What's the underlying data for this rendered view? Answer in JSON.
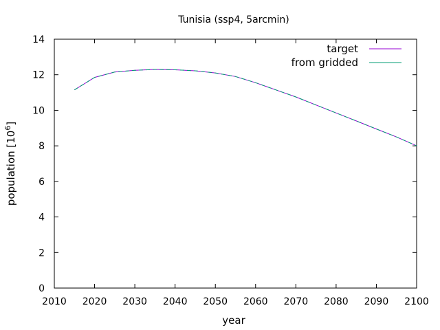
{
  "chart_data": {
    "type": "line",
    "title": "Tunisia (ssp4, 5arcmin)",
    "xlabel": "year",
    "ylabel_main": "population [10",
    "ylabel_exp": "6",
    "ylabel_close": "]",
    "xlim": [
      2010,
      2100
    ],
    "ylim": [
      0,
      14
    ],
    "xticks": [
      2010,
      2020,
      2030,
      2040,
      2050,
      2060,
      2070,
      2080,
      2090,
      2100
    ],
    "yticks": [
      0,
      2,
      4,
      6,
      8,
      10,
      12,
      14
    ],
    "grid": false,
    "legend_position": "top-right",
    "x": [
      2015,
      2020,
      2025,
      2030,
      2035,
      2040,
      2045,
      2050,
      2055,
      2060,
      2065,
      2070,
      2075,
      2080,
      2085,
      2090,
      2095,
      2100
    ],
    "series": [
      {
        "name": "target",
        "color": "#9400d3",
        "values": [
          11.15,
          11.85,
          12.15,
          12.25,
          12.3,
          12.28,
          12.22,
          12.1,
          11.9,
          11.55,
          11.15,
          10.75,
          10.3,
          9.85,
          9.4,
          8.95,
          8.5,
          8.0
        ]
      },
      {
        "name": "from gridded",
        "color": "#009e73",
        "values": [
          11.15,
          11.85,
          12.15,
          12.25,
          12.3,
          12.28,
          12.22,
          12.1,
          11.9,
          11.55,
          11.15,
          10.75,
          10.3,
          9.85,
          9.4,
          8.95,
          8.5,
          8.0
        ]
      }
    ]
  }
}
